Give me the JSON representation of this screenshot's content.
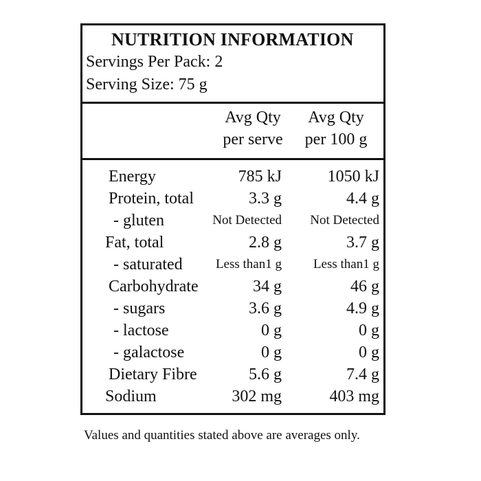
{
  "panel": {
    "title": "NUTRITION INFORMATION",
    "servings_per_pack": "Servings Per Pack: 2",
    "serving_size": "Serving Size: 75 g"
  },
  "columns": {
    "per_serve_line1": "Avg Qty",
    "per_serve_line2": "per serve",
    "per_100g_line1": "Avg Qty",
    "per_100g_line2": "per 100 g"
  },
  "rows": [
    {
      "name": "Energy",
      "per_serve": "785 kJ",
      "per_100g": "1050 kJ"
    },
    {
      "name": "Protein, total",
      "per_serve": "3.3 g",
      "per_100g": "4.4 g"
    },
    {
      "name": "- gluten",
      "per_serve": "Not Detected",
      "per_100g": "Not Detected"
    },
    {
      "name": "Fat, total",
      "per_serve": "2.8 g",
      "per_100g": "3.7 g"
    },
    {
      "name": "- saturated",
      "per_serve": "Less than1 g",
      "per_100g": "Less than1 g"
    },
    {
      "name": "Carbohydrate",
      "per_serve": "34 g",
      "per_100g": "46 g"
    },
    {
      "name": "- sugars",
      "per_serve": "3.6 g",
      "per_100g": "4.9 g"
    },
    {
      "name": "- lactose",
      "per_serve": "0 g",
      "per_100g": "0 g"
    },
    {
      "name": "- galactose",
      "per_serve": "0 g",
      "per_100g": "0 g"
    },
    {
      "name": "Dietary Fibre",
      "per_serve": "5.6 g",
      "per_100g": "7.4 g"
    },
    {
      "name": "Sodium",
      "per_serve": "302 mg",
      "per_100g": "403 mg"
    }
  ],
  "footnote": "Values and quantities stated above are averages only."
}
